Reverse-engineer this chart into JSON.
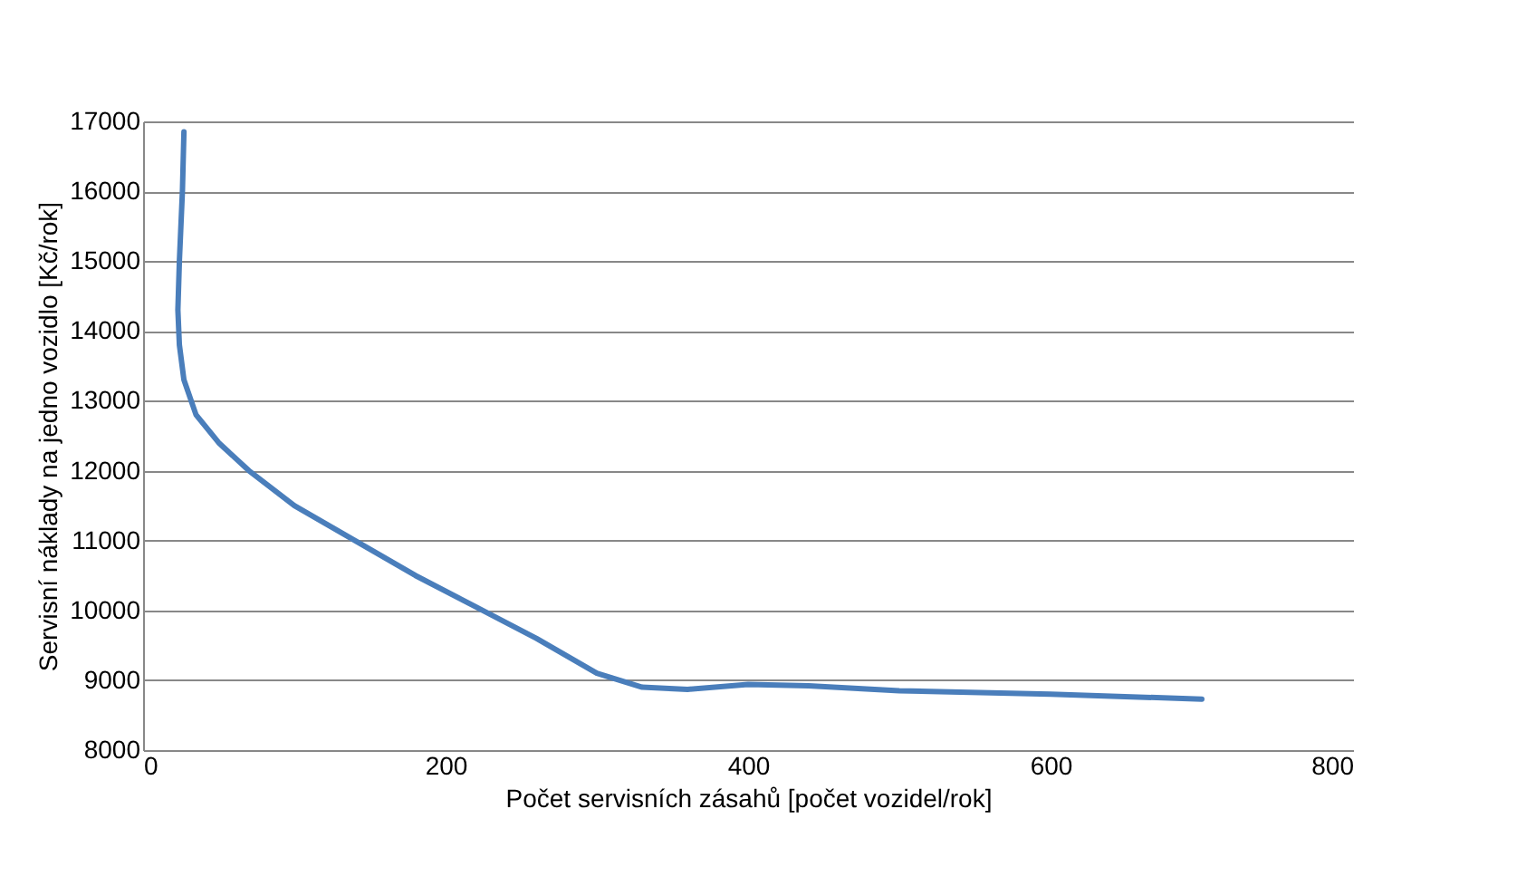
{
  "chart_data": {
    "type": "line",
    "xlabel": "Počet servisních zásahů  [počet vozidel/rok]",
    "ylabel": "Servisní náklady na jedno vozidlo  [Kč/rok]",
    "xlim": [
      0,
      800
    ],
    "xticks": [
      0,
      200,
      400,
      600,
      800
    ],
    "ylim": [
      8000,
      17000
    ],
    "yticks": [
      8000,
      9000,
      10000,
      11000,
      12000,
      13000,
      14000,
      15000,
      16000,
      17000
    ],
    "grid": "y",
    "marker": "none",
    "line_style": "solid",
    "series": [
      {
        "color": "#4a7ebb",
        "x": [
          27,
          26,
          24,
          23,
          24,
          27,
          35,
          50,
          70,
          100,
          140,
          180,
          220,
          260,
          300,
          330,
          360,
          400,
          440,
          500,
          600,
          700
        ],
        "values": [
          16850,
          16000,
          15000,
          14300,
          13800,
          13300,
          12800,
          12400,
          12000,
          11500,
          11000,
          10500,
          10050,
          9600,
          9100,
          8900,
          8870,
          8940,
          8920,
          8850,
          8800,
          8730
        ]
      }
    ]
  }
}
